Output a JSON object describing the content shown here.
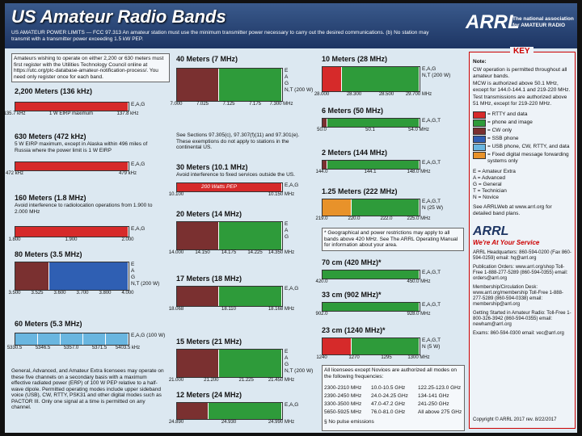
{
  "header": {
    "title": "US Amateur Radio Bands",
    "subtitle": "US AMATEUR POWER LIMITS — FCC 97.313 An amateur station must use the minimum transmitter power necessary to carry out the desired communications. (b) No station may transmit with a transmitter power exceeding 1.5 kW PEP.",
    "logo": "ARRL",
    "logo_tagline": "The national association for AMATEUR RADIO"
  },
  "registration_note": "Amateurs wishing to operate on either 2,200 or 630 meters must first register with the Utilities Technology Council online at https://utc.org/plc-database-amateur-notification-process/. You need only register once for each band.",
  "bands": [
    {
      "title": "2,200 Meters (136 kHz)",
      "freqs": [
        "135.7 kHz",
        "1 W EIRP maximum",
        "137.8 kHz"
      ],
      "privileges": [
        "E,A,G"
      ]
    },
    {
      "title": "630 Meters (472 kHz)",
      "note": "5 W EIRP maximum, except in Alaska within 496 miles of Russia where the power limit is 1 W EIRP",
      "freqs": [
        "472 kHz",
        "479 kHz"
      ],
      "privileges": [
        "E,A,G"
      ]
    },
    {
      "title": "160 Meters (1.8 MHz)",
      "note": "Avoid interference to radiolocation operations from 1.900 to 2.000 MHz",
      "freqs": [
        "1.800",
        "1.900",
        "2.000"
      ],
      "privileges": [
        "E,A,G"
      ]
    },
    {
      "title": "80 Meters (3.5 MHz)",
      "freqs": [
        "3.500",
        "3.525",
        "3.600",
        "3.700",
        "3.800",
        "4.000"
      ],
      "privileges": [
        "E",
        "A",
        "G",
        "N,T (200 W)"
      ]
    },
    {
      "title": "60 Meters (5.3 MHz)",
      "freqs": [
        "5330.5",
        "5346.5",
        "5357.0",
        "5371.5",
        "5403.5 kHz"
      ],
      "privileges": [
        "E,A,G (100 W)"
      ]
    },
    {
      "title": "40 Meters (7 MHz)",
      "freqs": [
        "7.000",
        "7.025",
        "7.125",
        "7.175",
        "7.300 MHz"
      ],
      "privileges": [
        "E",
        "A",
        "G",
        "N,T (200 W)"
      ]
    },
    {
      "title": "30 Meters (10.1 MHz)",
      "note": "Avoid interference to fixed services outside the US.",
      "inner": "200 Watts PEP",
      "freqs": [
        "10.100",
        "10.150 MHz"
      ],
      "privileges": [
        "E,A,G"
      ]
    },
    {
      "title": "20 Meters (14 MHz)",
      "freqs": [
        "14.000",
        "14.150",
        "14.175",
        "14.225",
        "14.350 MHz"
      ],
      "privileges": [
        "E",
        "A",
        "G"
      ]
    },
    {
      "title": "17 Meters (18 MHz)",
      "freqs": [
        "18.068",
        "18.110",
        "18.168 MHz"
      ],
      "privileges": [
        "E,A,G"
      ]
    },
    {
      "title": "15 Meters (21 MHz)",
      "freqs": [
        "21.000",
        "21.200",
        "21.225",
        "21.450 MHz"
      ],
      "privileges": [
        "E",
        "A",
        "G",
        "N,T (200 W)"
      ]
    },
    {
      "title": "12 Meters (24 MHz)",
      "freqs": [
        "24.890",
        "24.930",
        "24.990 MHz"
      ],
      "privileges": [
        "E,A,G"
      ]
    },
    {
      "title": "10 Meters (28 MHz)",
      "freqs": [
        "28.000",
        "28.300",
        "28.500",
        "29.700 MHz"
      ],
      "privileges": [
        "E,A,G",
        "N,T (200 W)"
      ]
    },
    {
      "title": "6 Meters (50 MHz)",
      "freqs": [
        "50.0",
        "50.1",
        "54.0 MHz"
      ],
      "privileges": [
        "E,A,G,T"
      ]
    },
    {
      "title": "2 Meters (144 MHz)",
      "freqs": [
        "144.0",
        "144.1",
        "148.0 MHz"
      ],
      "privileges": [
        "E,A,G,T"
      ]
    },
    {
      "title": "1.25 Meters (222 MHz)",
      "freqs": [
        "219.0",
        "220.0",
        "222.0",
        "225.0 MHz"
      ],
      "privileges": [
        "E,A,G,T",
        "N (25 W)"
      ]
    },
    {
      "title": "70 cm (420 MHz)*",
      "freqs": [
        "420.0",
        "450.0 MHz"
      ],
      "privileges": [
        "E,A,G,T"
      ]
    },
    {
      "title": "33 cm (902 MHz)*",
      "freqs": [
        "902.0",
        "928.0 MHz"
      ],
      "privileges": [
        "E,A,G,T"
      ]
    },
    {
      "title": "23 cm (1240 MHz)*",
      "freqs": [
        "1240",
        "1270",
        "1295",
        "1300 MHz"
      ],
      "privileges": [
        "E,A,G,T",
        "N (5 W)"
      ]
    }
  ],
  "sixty_meter_note": "General, Advanced, and Amateur Extra licensees may operate on these five channels on a secondary basis with a maximum effective radiated power (ERP) of 100 W PEP relative to a half-wave dipole. Permitted operating modes include upper sideband voice (USB), CW, RTTY, PSK31 and other digital modes such as PACTOR III. Only one signal at a time is permitted on any channel.",
  "forty_meter_note": "See Sections 97.305(c), 97.307(f)(11) and 97.301(e). These exemptions do not apply to stations in the continental US.",
  "uhf_note": "* Geographical and power restrictions may apply to all bands above 420 MHz. See The ARRL Operating Manual for information about your area.",
  "all_modes": {
    "heading": "All licensees except Novices are authorized all modes on the following frequencies:",
    "rows": [
      [
        "2300-2310 MHz",
        "10.0-10.5 GHz",
        "122.25-123.0 GHz"
      ],
      [
        "2390-2450 MHz",
        "24.0-24.25 GHz",
        "134-141 GHz"
      ],
      [
        "3300-3500 MHz",
        "47.0-47.2 GHz",
        "241-250 GHz"
      ],
      [
        "5650-5925 MHz",
        "76.0-81.0 GHz",
        "All above 275 GHz"
      ]
    ],
    "footnote": "§ No pulse emissions"
  },
  "key": {
    "title": "KEY",
    "notes": [
      "Note:",
      "CW operation is permitted throughout all amateur bands.",
      "MCW is authorized above 50.1 MHz, except for 144.0-144.1 and 219-220 MHz.",
      "Test transmissions are authorized above 51 MHz, except for 219-220 MHz."
    ],
    "legend": [
      {
        "label": "= RTTY and data",
        "color": "#d62a2a"
      },
      {
        "label": "= phone and image",
        "color": "#2e9b3a"
      },
      {
        "label": "= CW only",
        "color": "#7a3030"
      },
      {
        "label": "= SSB phone",
        "color": "#2f5fb3"
      },
      {
        "label": "= USB phone, CW, RTTY, and data",
        "color": "#69b6e0"
      },
      {
        "label": "= Fixed digital message forwarding systems only",
        "color": "#e8922a"
      }
    ],
    "classes": [
      "E = Amateur Extra",
      "A = Advanced",
      "G = General",
      "T = Technician",
      "N = Novice"
    ],
    "web": "See ARRLWeb at www.arrl.org for detailed band plans."
  },
  "contact": {
    "name": "ARRL",
    "slogan": "We're At Your Service",
    "lines": [
      "ARRL Headquarters: 860-594-0200 (Fax 860-594-0259) email: hq@arrl.org",
      "Publication Orders: www.arrl.org/shop Toll-Free 1-888-277-5289 (860-594-0355) email: orders@arrl.org",
      "Membership/Circulation Desk: www.arrl.org/membership Toll-Free 1-888-277-5289 (860-594-0338) email: membership@arrl.org",
      "Getting Started in Amateur Radio: Toll-Free 1-800-326-3942 (860-594-0355) email: newham@arrl.org",
      "Exams: 860-594-0300 email: vec@arrl.org"
    ],
    "copyright": "Copyright © ARRL 2017   rev. 8/22/2017"
  }
}
